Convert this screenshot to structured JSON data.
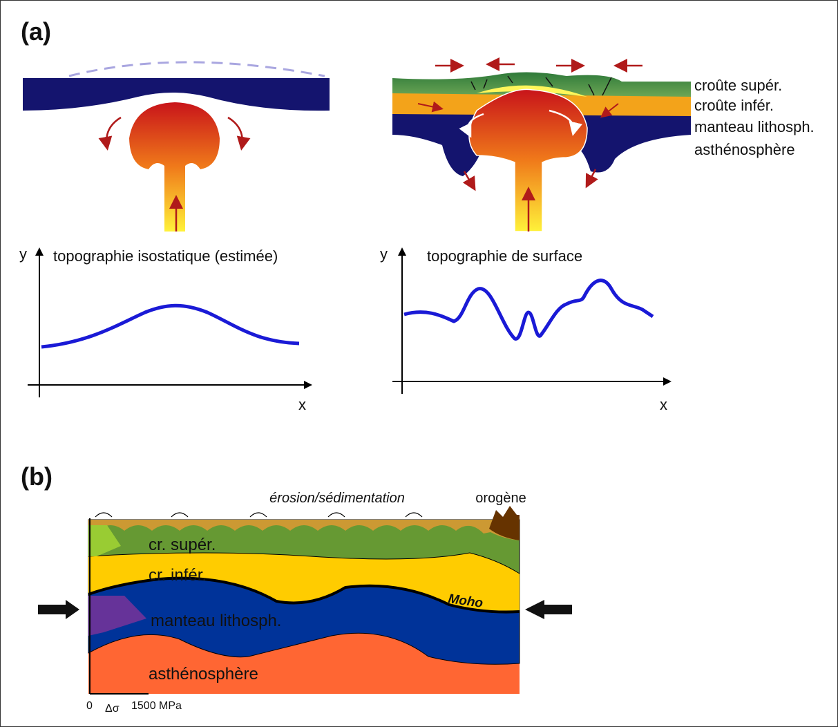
{
  "panel_a": {
    "label": "(a)",
    "layers": [
      "croûte supér.",
      "croûte infér.",
      "manteau lithosph.",
      "asthénosphère"
    ],
    "plot_left": {
      "y_label": "y",
      "title": "topographie isostatique (estimée)",
      "x_label": "x"
    },
    "plot_right": {
      "y_label": "y",
      "title": "topographie de surface",
      "x_label": "x"
    }
  },
  "panel_b": {
    "label": "(b)",
    "annotations": {
      "erosion": "érosion/sédimentation",
      "orogen": "orogène"
    },
    "layers": [
      "cr. supér.",
      "cr. infér.",
      "manteau lithosph.",
      "asthénosphère"
    ],
    "moho": "Moho",
    "scale": {
      "zero": "0",
      "delta": "Δσ",
      "max": "1500 MPa"
    }
  }
}
